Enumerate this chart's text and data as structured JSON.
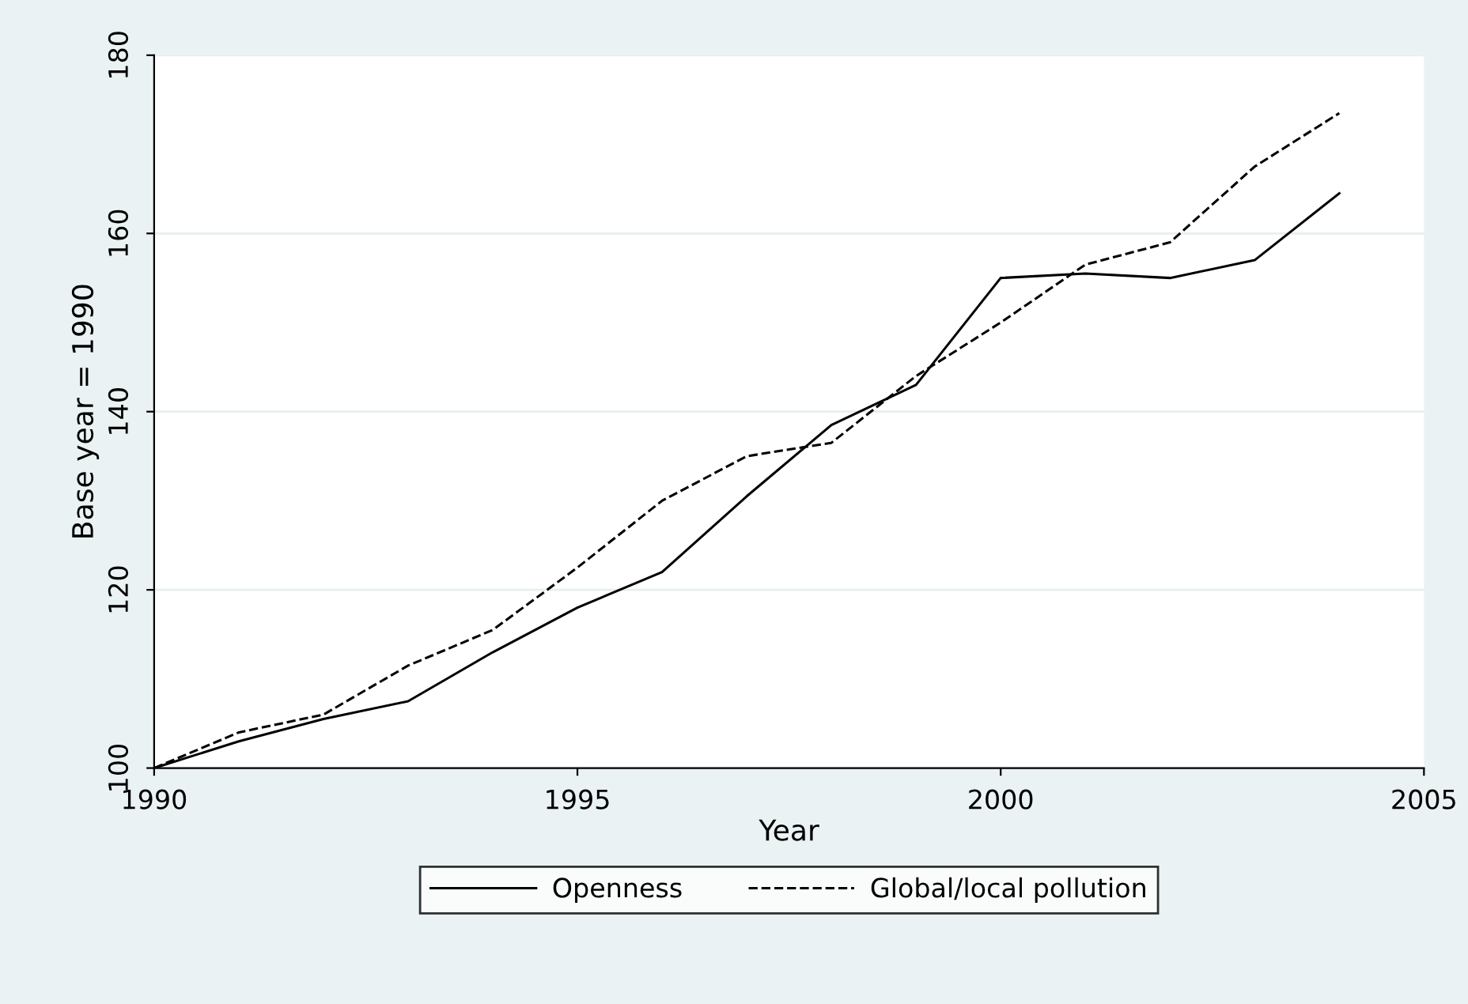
{
  "chart_data": {
    "type": "line",
    "xlabel": "Year",
    "ylabel": "Base year = 1990",
    "x": [
      1990,
      1991,
      1992,
      1993,
      1994,
      1995,
      1996,
      1997,
      1998,
      1999,
      2000,
      2001,
      2002,
      2003,
      2004
    ],
    "series": [
      {
        "name": "Openness",
        "color": "#000000",
        "line_style": "solid",
        "values": [
          100,
          103,
          105.5,
          107.5,
          113,
          118,
          122,
          130.5,
          138.5,
          143,
          155,
          155.5,
          155,
          157,
          164.5
        ]
      },
      {
        "name": "Global/local pollution",
        "color": "#000000",
        "line_style": "dashed",
        "values": [
          100,
          104,
          106,
          111.5,
          115.5,
          122.5,
          130,
          135,
          136.5,
          144,
          150,
          156.5,
          159,
          167.5,
          173.5
        ]
      }
    ],
    "xlim": [
      1990,
      2005
    ],
    "xticks": [
      1990,
      1995,
      2000,
      2005
    ],
    "ylim": [
      100,
      180
    ],
    "yticks": [
      100,
      120,
      140,
      160,
      180
    ],
    "grid": "y",
    "legend": "bottom"
  }
}
